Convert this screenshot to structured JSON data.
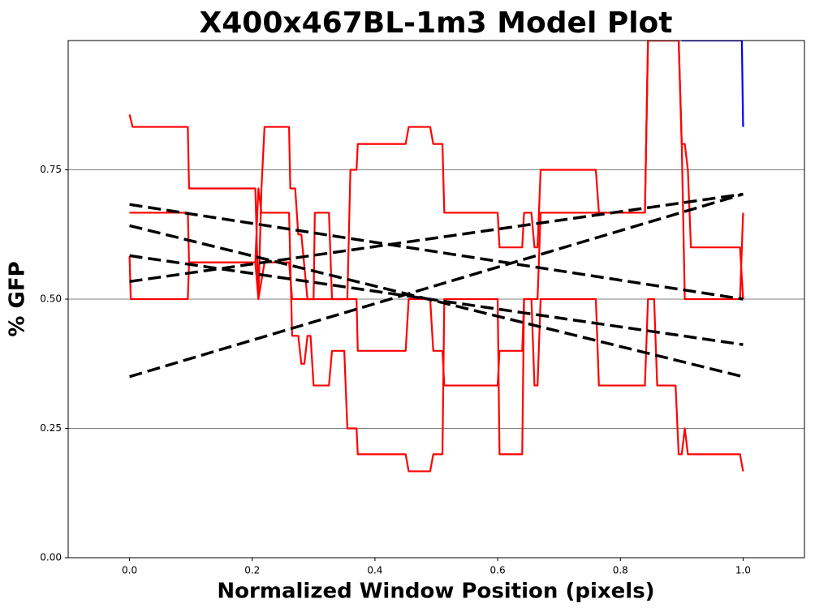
{
  "chart_data": {
    "type": "line",
    "title": "X400x467BL-1m3 Model Plot",
    "xlabel": "Normalized Window Position (pixels)",
    "ylabel": "% GFP",
    "xlim": [
      -0.1,
      1.1
    ],
    "ylim": [
      0,
      1
    ],
    "xticks": [
      {
        "value": 0,
        "label": "0.0"
      },
      {
        "value": 0.2,
        "label": "0.2"
      },
      {
        "value": 0.4,
        "label": "0.4"
      },
      {
        "value": 0.6,
        "label": "0.6"
      },
      {
        "value": 0.8,
        "label": "0.8"
      },
      {
        "value": 1,
        "label": "1.0"
      }
    ],
    "yticks": [
      {
        "value": 0,
        "label": "0.00"
      },
      {
        "value": 0.25,
        "label": "0.25"
      },
      {
        "value": 0.5,
        "label": "0.50"
      },
      {
        "value": 0.75,
        "label": "0.75"
      }
    ],
    "grid": true,
    "grid_color": "#808080",
    "series": [
      {
        "color": "#ff0000",
        "x": [
          0,
          0.005,
          0.095,
          0.097,
          0.205,
          0.21,
          0.215,
          0.22,
          0.26,
          0.262,
          0.27,
          0.275,
          0.28,
          0.29,
          0.3,
          0.302,
          0.325,
          0.33,
          0.355,
          0.36,
          0.37,
          0.372,
          0.45,
          0.455,
          0.49,
          0.495,
          0.51,
          0.513,
          0.6,
          0.603,
          0.64,
          0.643,
          0.655,
          0.66,
          0.665,
          0.67,
          0.76,
          0.765,
          0.84,
          0.845,
          0.895,
          0.9,
          0.905,
          0.91,
          0.915,
          0.995,
          1.0
        ],
        "values": [
          0.857,
          0.833,
          0.833,
          0.714,
          0.714,
          0.5,
          0.714,
          0.833,
          0.833,
          0.714,
          0.714,
          0.625,
          0.625,
          0.5,
          0.5,
          0.667,
          0.667,
          0.5,
          0.5,
          0.75,
          0.75,
          0.8,
          0.8,
          0.833,
          0.833,
          0.8,
          0.8,
          0.667,
          0.667,
          0.6,
          0.6,
          0.667,
          0.667,
          0.6,
          0.6,
          0.75,
          0.75,
          0.667,
          0.667,
          1.0,
          1.0,
          0.8,
          0.8,
          0.75,
          0.6,
          0.6,
          0.5
        ]
      },
      {
        "color": "#ff0000",
        "x": [
          0,
          0.095,
          0.097,
          0.205,
          0.21,
          0.215,
          0.26,
          0.265,
          0.275,
          0.28,
          0.285,
          0.29,
          0.295,
          0.3,
          0.325,
          0.33,
          0.35,
          0.355,
          0.37,
          0.372,
          0.45,
          0.455,
          0.49,
          0.495,
          0.51,
          0.513,
          0.6,
          0.603,
          0.64,
          0.643,
          0.655,
          0.66,
          0.665,
          0.67,
          0.76,
          0.765,
          0.84,
          0.845,
          0.855,
          0.86,
          0.89,
          0.895,
          0.9,
          0.905,
          0.91,
          0.995,
          1.0
        ],
        "values": [
          0.667,
          0.667,
          0.571,
          0.571,
          0.714,
          0.667,
          0.667,
          0.429,
          0.429,
          0.375,
          0.375,
          0.429,
          0.429,
          0.333,
          0.333,
          0.4,
          0.4,
          0.25,
          0.25,
          0.2,
          0.2,
          0.167,
          0.167,
          0.2,
          0.2,
          0.5,
          0.5,
          0.2,
          0.2,
          0.5,
          0.5,
          0.333,
          0.333,
          0.5,
          0.5,
          0.333,
          0.333,
          0.5,
          0.5,
          0.333,
          0.333,
          0.2,
          0.2,
          0.25,
          0.2,
          0.2,
          0.167
        ]
      },
      {
        "color": "#ff0000",
        "x": [
          0,
          0.002,
          0.095,
          0.097,
          0.205,
          0.21,
          0.22,
          0.26,
          0.265,
          0.37,
          0.372,
          0.45,
          0.455,
          0.49,
          0.495,
          0.51,
          0.513,
          0.6,
          0.603,
          0.64,
          0.643,
          0.665,
          0.67,
          0.84,
          0.845,
          0.895,
          0.9,
          0.905,
          0.995,
          1.0
        ],
        "values": [
          0.583,
          0.5,
          0.5,
          0.571,
          0.571,
          0.5,
          0.571,
          0.571,
          0.5,
          0.5,
          0.4,
          0.4,
          0.5,
          0.5,
          0.4,
          0.4,
          0.333,
          0.333,
          0.4,
          0.4,
          0.5,
          0.5,
          0.667,
          0.667,
          1.0,
          1.0,
          0.8,
          0.5,
          0.5,
          0.667
        ]
      },
      {
        "color": "#0000ff",
        "x": [
          0.9,
          0.998,
          1.0
        ],
        "values": [
          1.0,
          1.0,
          0.833
        ]
      },
      {
        "color": "#000000",
        "linestyle": "dashed",
        "x": [
          0,
          1
        ],
        "values": [
          0.683,
          0.5
        ]
      },
      {
        "color": "#000000",
        "linestyle": "dashed",
        "x": [
          0,
          1
        ],
        "values": [
          0.642,
          0.35
        ]
      },
      {
        "color": "#000000",
        "linestyle": "dashed",
        "x": [
          0,
          1
        ],
        "values": [
          0.584,
          0.412
        ]
      },
      {
        "color": "#000000",
        "linestyle": "dashed",
        "x": [
          0,
          1
        ],
        "values": [
          0.534,
          0.703
        ]
      },
      {
        "color": "#000000",
        "linestyle": "dashed",
        "x": [
          0,
          1
        ],
        "values": [
          0.35,
          0.703
        ]
      }
    ]
  }
}
